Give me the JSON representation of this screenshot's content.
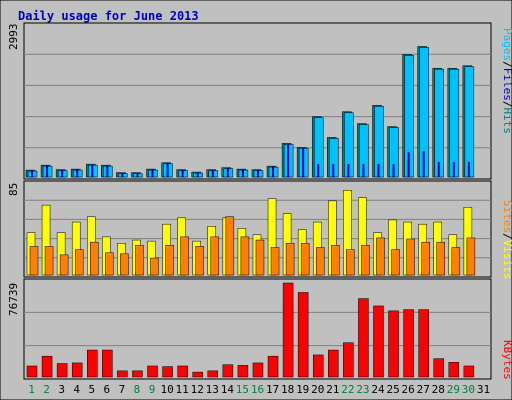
{
  "chart_data": {
    "type": "bar",
    "title": "Daily usage for June 2013",
    "x": [
      "1",
      "2",
      "3",
      "4",
      "5",
      "6",
      "7",
      "8",
      "9",
      "10",
      "11",
      "12",
      "13",
      "14",
      "15",
      "16",
      "17",
      "18",
      "19",
      "20",
      "21",
      "22",
      "23",
      "24",
      "25",
      "26",
      "27",
      "28",
      "29",
      "30",
      "31"
    ],
    "weekend_days": [
      "1",
      "2",
      "8",
      "9",
      "15",
      "16",
      "22",
      "23",
      "29",
      "30"
    ],
    "panels": [
      {
        "name": "pages-files-hits",
        "ymax_label": "2993",
        "ymax": 2993,
        "legend": [
          "Pages",
          "/",
          "Files",
          "/",
          "Hits"
        ],
        "legend_colors": [
          "#00c0ff",
          "#000000",
          "#0000c0",
          "#000000",
          "#008080"
        ],
        "series": [
          {
            "name": "Hits",
            "color": "#008080",
            "values": [
              140,
              240,
              150,
              160,
              260,
              240,
              90,
              90,
              160,
              290,
              150,
              100,
              150,
              190,
              160,
              150,
              220,
              680,
              600,
              1220,
              800,
              1320,
              1080,
              1450,
              1020,
              2480,
              2640,
              2200,
              2200,
              2250,
              0
            ]
          },
          {
            "name": "Files",
            "color": "#0000c0",
            "values": [
              130,
              230,
              140,
              150,
              250,
              230,
              80,
              80,
              150,
              280,
              140,
              90,
              140,
              180,
              150,
              140,
              210,
              660,
              580,
              260,
              260,
              260,
              260,
              260,
              260,
              500,
              520,
              300,
              300,
              300,
              0
            ]
          },
          {
            "name": "Pages",
            "color": "#00c0ff",
            "values": [
              140,
              240,
              150,
              160,
              260,
              240,
              90,
              90,
              160,
              290,
              150,
              100,
              150,
              190,
              160,
              150,
              220,
              680,
              600,
              1220,
              800,
              1320,
              1080,
              1450,
              1020,
              2480,
              2640,
              2200,
              2200,
              2250,
              0
            ]
          }
        ]
      },
      {
        "name": "sites-visits",
        "ymax_label": "85",
        "ymax": 85,
        "legend": [
          "Sites",
          "/",
          "Visits"
        ],
        "legend_colors": [
          "#ff8000",
          "#000000",
          "#ffff00"
        ],
        "series": [
          {
            "name": "Visits",
            "color": "#ffff00",
            "values": [
              40,
              66,
              40,
              50,
              55,
              36,
              30,
              33,
              32,
              48,
              54,
              32,
              46,
              54,
              44,
              38,
              72,
              58,
              43,
              50,
              70,
              80,
              73,
              40,
              52,
              50,
              48,
              50,
              38,
              64,
              0
            ]
          },
          {
            "name": "Sites",
            "color": "#ff8000",
            "values": [
              27,
              27,
              19,
              24,
              31,
              21,
              20,
              28,
              16,
              28,
              36,
              27,
              36,
              55,
              36,
              33,
              26,
              30,
              30,
              26,
              28,
              24,
              28,
              35,
              24,
              34,
              31,
              31,
              26,
              35,
              0
            ]
          }
        ]
      },
      {
        "name": "kbytes",
        "ymax_label": "76739",
        "ymax": 76739,
        "legend": [
          "KBytes"
        ],
        "legend_colors": [
          "#ff0000"
        ],
        "series": [
          {
            "name": "KBytes",
            "color": "#ff0000",
            "values": [
              9000,
              17000,
              11000,
              11500,
              22000,
              22000,
              5000,
              5000,
              9000,
              8500,
              9000,
              4000,
              5000,
              10000,
              9500,
              11500,
              17000,
              76739,
              69000,
              18000,
              22000,
              28000,
              64000,
              58000,
              54000,
              55000,
              55000,
              15000,
              12000,
              9000,
              0
            ]
          }
        ]
      }
    ]
  }
}
